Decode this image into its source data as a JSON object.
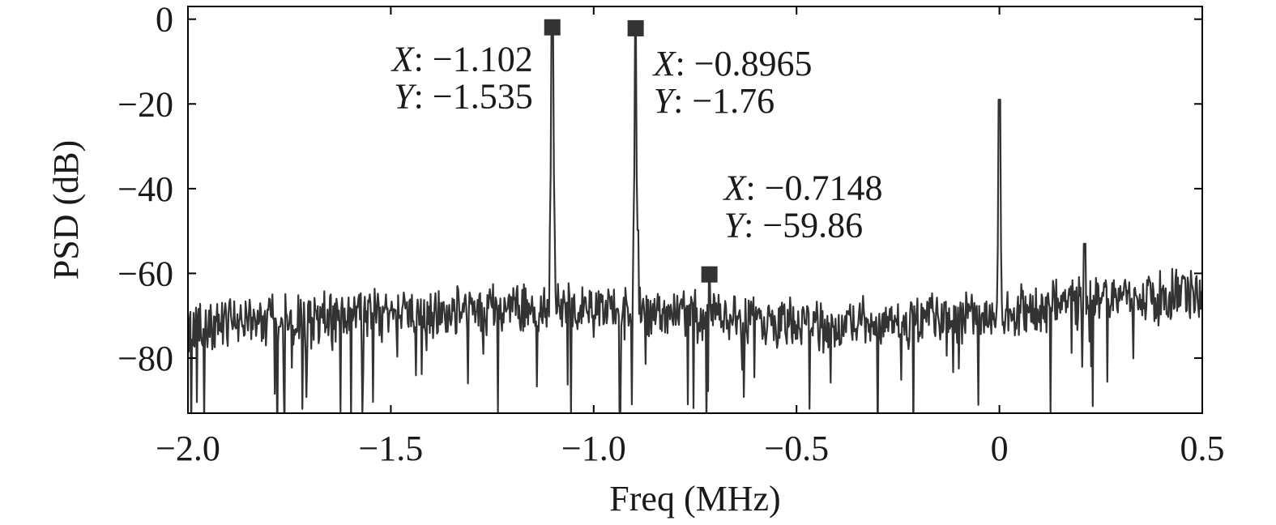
{
  "colors": {
    "trace": "#333333",
    "frame": "#000000",
    "grid": "#d9d9d9",
    "text": "#1a1a1a"
  },
  "chart_data": {
    "type": "line",
    "title": "",
    "xlabel": "Freq (MHz)",
    "ylabel": "PSD (dB)",
    "xlim": [
      -2.0,
      0.5
    ],
    "ylim": [
      -93,
      3
    ],
    "grid": false,
    "xticks": [
      -2.0,
      -1.5,
      -1.0,
      -0.5,
      0,
      0.5
    ],
    "xtick_labels": [
      "−2.0",
      "−1.5",
      "−1.0",
      "−0.5",
      "0",
      "0.5"
    ],
    "yticks": [
      0,
      -20,
      -40,
      -60,
      -80
    ],
    "ytick_labels": [
      "0",
      "−20",
      "−40",
      "−60",
      "−80"
    ],
    "noise_floor_db": -70,
    "peaks": [
      {
        "x": -1.102,
        "y": -1.535
      },
      {
        "x": -0.8965,
        "y": -1.76
      },
      {
        "x": 0.0,
        "y": -19
      },
      {
        "x": -0.7148,
        "y": -59.86
      },
      {
        "x": 0.21,
        "y": -53
      }
    ],
    "markers": [
      {
        "x": -1.102,
        "y": -1.535,
        "x_text": "−1.102",
        "y_text": "−1.535"
      },
      {
        "x": -0.8965,
        "y": -1.76,
        "x_text": "−0.8965",
        "y_text": "−1.76"
      },
      {
        "x": -0.7148,
        "y": -59.86,
        "x_text": "−0.7148",
        "y_text": "−59.86"
      }
    ]
  }
}
